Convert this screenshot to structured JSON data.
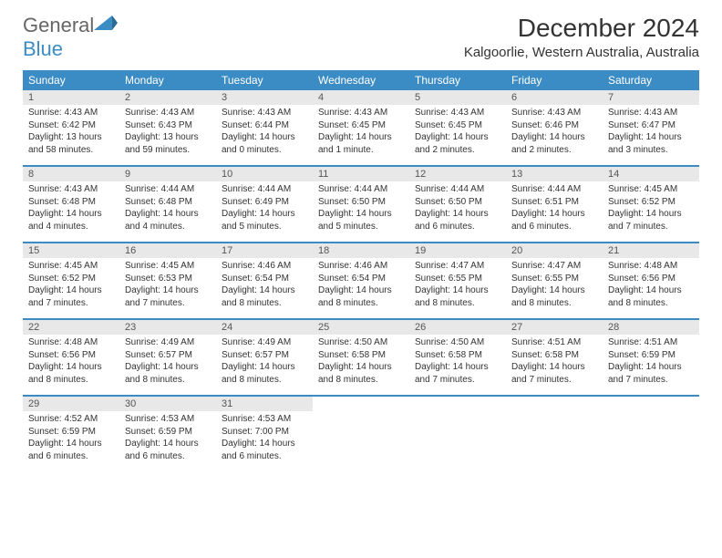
{
  "logo": {
    "text1": "General",
    "text2": "Blue"
  },
  "title": "December 2024",
  "location": "Kalgoorlie, Western Australia, Australia",
  "dayNames": [
    "Sunday",
    "Monday",
    "Tuesday",
    "Wednesday",
    "Thursday",
    "Friday",
    "Saturday"
  ],
  "colors": {
    "headerBg": "#3b8cc4",
    "headerText": "#ffffff",
    "dayNumBg": "#e8e8e8",
    "dayNumText": "#555555",
    "bodyText": "#333333",
    "logoGray": "#666666",
    "logoBlue": "#3b8cc4",
    "weekBorder": "#3b8cc4"
  },
  "weeks": [
    [
      {
        "num": "1",
        "sunrise": "Sunrise: 4:43 AM",
        "sunset": "Sunset: 6:42 PM",
        "daylight": "Daylight: 13 hours and 58 minutes."
      },
      {
        "num": "2",
        "sunrise": "Sunrise: 4:43 AM",
        "sunset": "Sunset: 6:43 PM",
        "daylight": "Daylight: 13 hours and 59 minutes."
      },
      {
        "num": "3",
        "sunrise": "Sunrise: 4:43 AM",
        "sunset": "Sunset: 6:44 PM",
        "daylight": "Daylight: 14 hours and 0 minutes."
      },
      {
        "num": "4",
        "sunrise": "Sunrise: 4:43 AM",
        "sunset": "Sunset: 6:45 PM",
        "daylight": "Daylight: 14 hours and 1 minute."
      },
      {
        "num": "5",
        "sunrise": "Sunrise: 4:43 AM",
        "sunset": "Sunset: 6:45 PM",
        "daylight": "Daylight: 14 hours and 2 minutes."
      },
      {
        "num": "6",
        "sunrise": "Sunrise: 4:43 AM",
        "sunset": "Sunset: 6:46 PM",
        "daylight": "Daylight: 14 hours and 2 minutes."
      },
      {
        "num": "7",
        "sunrise": "Sunrise: 4:43 AM",
        "sunset": "Sunset: 6:47 PM",
        "daylight": "Daylight: 14 hours and 3 minutes."
      }
    ],
    [
      {
        "num": "8",
        "sunrise": "Sunrise: 4:43 AM",
        "sunset": "Sunset: 6:48 PM",
        "daylight": "Daylight: 14 hours and 4 minutes."
      },
      {
        "num": "9",
        "sunrise": "Sunrise: 4:44 AM",
        "sunset": "Sunset: 6:48 PM",
        "daylight": "Daylight: 14 hours and 4 minutes."
      },
      {
        "num": "10",
        "sunrise": "Sunrise: 4:44 AM",
        "sunset": "Sunset: 6:49 PM",
        "daylight": "Daylight: 14 hours and 5 minutes."
      },
      {
        "num": "11",
        "sunrise": "Sunrise: 4:44 AM",
        "sunset": "Sunset: 6:50 PM",
        "daylight": "Daylight: 14 hours and 5 minutes."
      },
      {
        "num": "12",
        "sunrise": "Sunrise: 4:44 AM",
        "sunset": "Sunset: 6:50 PM",
        "daylight": "Daylight: 14 hours and 6 minutes."
      },
      {
        "num": "13",
        "sunrise": "Sunrise: 4:44 AM",
        "sunset": "Sunset: 6:51 PM",
        "daylight": "Daylight: 14 hours and 6 minutes."
      },
      {
        "num": "14",
        "sunrise": "Sunrise: 4:45 AM",
        "sunset": "Sunset: 6:52 PM",
        "daylight": "Daylight: 14 hours and 7 minutes."
      }
    ],
    [
      {
        "num": "15",
        "sunrise": "Sunrise: 4:45 AM",
        "sunset": "Sunset: 6:52 PM",
        "daylight": "Daylight: 14 hours and 7 minutes."
      },
      {
        "num": "16",
        "sunrise": "Sunrise: 4:45 AM",
        "sunset": "Sunset: 6:53 PM",
        "daylight": "Daylight: 14 hours and 7 minutes."
      },
      {
        "num": "17",
        "sunrise": "Sunrise: 4:46 AM",
        "sunset": "Sunset: 6:54 PM",
        "daylight": "Daylight: 14 hours and 8 minutes."
      },
      {
        "num": "18",
        "sunrise": "Sunrise: 4:46 AM",
        "sunset": "Sunset: 6:54 PM",
        "daylight": "Daylight: 14 hours and 8 minutes."
      },
      {
        "num": "19",
        "sunrise": "Sunrise: 4:47 AM",
        "sunset": "Sunset: 6:55 PM",
        "daylight": "Daylight: 14 hours and 8 minutes."
      },
      {
        "num": "20",
        "sunrise": "Sunrise: 4:47 AM",
        "sunset": "Sunset: 6:55 PM",
        "daylight": "Daylight: 14 hours and 8 minutes."
      },
      {
        "num": "21",
        "sunrise": "Sunrise: 4:48 AM",
        "sunset": "Sunset: 6:56 PM",
        "daylight": "Daylight: 14 hours and 8 minutes."
      }
    ],
    [
      {
        "num": "22",
        "sunrise": "Sunrise: 4:48 AM",
        "sunset": "Sunset: 6:56 PM",
        "daylight": "Daylight: 14 hours and 8 minutes."
      },
      {
        "num": "23",
        "sunrise": "Sunrise: 4:49 AM",
        "sunset": "Sunset: 6:57 PM",
        "daylight": "Daylight: 14 hours and 8 minutes."
      },
      {
        "num": "24",
        "sunrise": "Sunrise: 4:49 AM",
        "sunset": "Sunset: 6:57 PM",
        "daylight": "Daylight: 14 hours and 8 minutes."
      },
      {
        "num": "25",
        "sunrise": "Sunrise: 4:50 AM",
        "sunset": "Sunset: 6:58 PM",
        "daylight": "Daylight: 14 hours and 8 minutes."
      },
      {
        "num": "26",
        "sunrise": "Sunrise: 4:50 AM",
        "sunset": "Sunset: 6:58 PM",
        "daylight": "Daylight: 14 hours and 7 minutes."
      },
      {
        "num": "27",
        "sunrise": "Sunrise: 4:51 AM",
        "sunset": "Sunset: 6:58 PM",
        "daylight": "Daylight: 14 hours and 7 minutes."
      },
      {
        "num": "28",
        "sunrise": "Sunrise: 4:51 AM",
        "sunset": "Sunset: 6:59 PM",
        "daylight": "Daylight: 14 hours and 7 minutes."
      }
    ],
    [
      {
        "num": "29",
        "sunrise": "Sunrise: 4:52 AM",
        "sunset": "Sunset: 6:59 PM",
        "daylight": "Daylight: 14 hours and 6 minutes."
      },
      {
        "num": "30",
        "sunrise": "Sunrise: 4:53 AM",
        "sunset": "Sunset: 6:59 PM",
        "daylight": "Daylight: 14 hours and 6 minutes."
      },
      {
        "num": "31",
        "sunrise": "Sunrise: 4:53 AM",
        "sunset": "Sunset: 7:00 PM",
        "daylight": "Daylight: 14 hours and 6 minutes."
      },
      null,
      null,
      null,
      null
    ]
  ]
}
